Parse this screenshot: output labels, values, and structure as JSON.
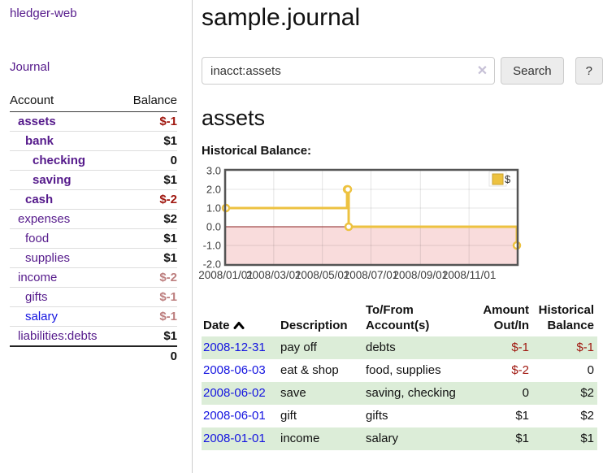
{
  "app": {
    "brand": "hledger-web"
  },
  "sidebar": {
    "nav": {
      "journal": "Journal"
    },
    "accounts": {
      "account_header": "Account",
      "balance_header": "Balance",
      "rows": [
        {
          "name": "assets",
          "balance": "$-1"
        },
        {
          "name": "bank",
          "balance": "$1"
        },
        {
          "name": "checking",
          "balance": "0"
        },
        {
          "name": "saving",
          "balance": "$1"
        },
        {
          "name": "cash",
          "balance": "$-2"
        },
        {
          "name": "expenses",
          "balance": "$2"
        },
        {
          "name": "food",
          "balance": "$1"
        },
        {
          "name": "supplies",
          "balance": "$1"
        },
        {
          "name": "income",
          "balance": "$-2"
        },
        {
          "name": "gifts",
          "balance": "$-1"
        },
        {
          "name": "salary",
          "balance": "$-1"
        },
        {
          "name": "liabilities:debts",
          "balance": "$1"
        }
      ],
      "total": "0"
    }
  },
  "header": {
    "title": "sample.journal"
  },
  "search": {
    "value": "inacct:assets",
    "clear_icon": "✕",
    "search_button": "Search",
    "help_button": "?"
  },
  "account_page": {
    "heading": "assets",
    "chart_title": "Historical Balance:"
  },
  "chart_data": {
    "type": "line",
    "step": true,
    "title": "Historical Balance:",
    "xlim": [
      "2008-01-01",
      "2008-12-31"
    ],
    "ylim": [
      -2,
      3
    ],
    "series": [
      {
        "name": "$",
        "color": "#edc240",
        "points": [
          [
            "2008-01-01",
            1
          ],
          [
            "2008-06-01",
            2
          ],
          [
            "2008-06-02",
            2
          ],
          [
            "2008-06-03",
            0
          ],
          [
            "2008-12-31",
            -1
          ]
        ]
      }
    ],
    "x_ticks": [
      {
        "label": "2008/01/01",
        "date": "2008-01-01"
      },
      {
        "label": "2008/03/01",
        "date": "2008-03-01"
      },
      {
        "label": "2008/05/01",
        "date": "2008-05-01"
      },
      {
        "label": "2008/07/01",
        "date": "2008-07-01"
      },
      {
        "label": "2008/09/01",
        "date": "2008-09-01"
      },
      {
        "label": "2008/11/01",
        "date": "2008-11-01"
      }
    ],
    "y_ticks": [
      "3.0",
      "2.0",
      "1.0",
      "0.0",
      "-1.0",
      "-2.0"
    ],
    "grid": true,
    "legend": {
      "label": "$",
      "position": "top-right"
    },
    "negative_region_color": "#f9dcdc",
    "zero_line_color": "#8b1f1f",
    "border_color": "#545454",
    "accent_color": "#edc240"
  },
  "register": {
    "columns": [
      {
        "label": "Date",
        "sort": "ascending"
      },
      {
        "label": "Description"
      },
      {
        "label": "To/From Account(s)"
      },
      {
        "label": "Amount Out/In"
      },
      {
        "label": "Historical Balance"
      }
    ],
    "rows": [
      {
        "date": "2008-12-31",
        "description": "pay off",
        "accounts": "debts",
        "amount": "$-1",
        "balance": "$-1"
      },
      {
        "date": "2008-06-03",
        "description": "eat & shop",
        "accounts": "food, supplies",
        "amount": "$-2",
        "balance": "0"
      },
      {
        "date": "2008-06-02",
        "description": "save",
        "accounts": "saving, checking",
        "amount": "0",
        "balance": "$2"
      },
      {
        "date": "2008-06-01",
        "description": "gift",
        "accounts": "gifts",
        "amount": "$1",
        "balance": "$2"
      },
      {
        "date": "2008-01-01",
        "description": "income",
        "accounts": "salary",
        "amount": "$1",
        "balance": "$1"
      }
    ]
  }
}
